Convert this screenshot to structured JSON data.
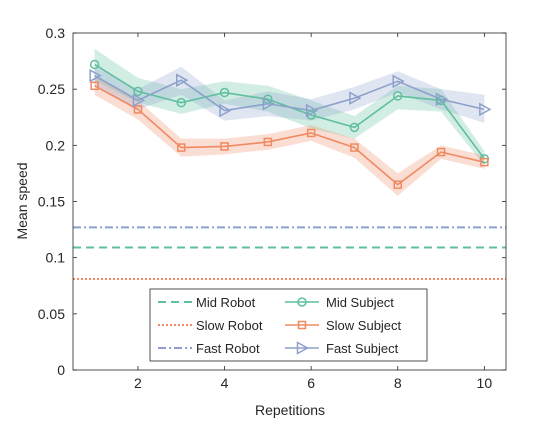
{
  "chart_data": {
    "type": "line",
    "xlabel": "Repetitions",
    "ylabel": "Mean speed",
    "xlim": [
      0.5,
      10.5
    ],
    "ylim": [
      0,
      0.3
    ],
    "xticks": [
      2,
      4,
      6,
      8,
      10
    ],
    "yticks": [
      0,
      0.05,
      0.1,
      0.15,
      0.2,
      0.25,
      0.3
    ],
    "ytick_labels": [
      "0",
      "0.05",
      "0.1",
      "0.15",
      "0.2",
      "0.25",
      "0.3"
    ],
    "grid": false,
    "legend_position": "bottom-center",
    "x": [
      1,
      2,
      3,
      4,
      5,
      6,
      7,
      8,
      9,
      10
    ],
    "series": [
      {
        "name": "Mid Subject",
        "color": "#5fbf9f",
        "marker": "circle",
        "values": [
          0.272,
          0.248,
          0.238,
          0.247,
          0.241,
          0.227,
          0.216,
          0.244,
          0.24,
          0.188
        ],
        "band_lower": [
          0.258,
          0.238,
          0.228,
          0.237,
          0.23,
          0.215,
          0.206,
          0.232,
          0.23,
          0.182
        ],
        "band_upper": [
          0.286,
          0.26,
          0.25,
          0.257,
          0.253,
          0.24,
          0.226,
          0.253,
          0.25,
          0.195
        ]
      },
      {
        "name": "Slow Subject",
        "color": "#ef8a62",
        "marker": "square",
        "values": [
          0.253,
          0.232,
          0.198,
          0.199,
          0.203,
          0.211,
          0.198,
          0.165,
          0.194,
          0.185
        ],
        "band_lower": [
          0.245,
          0.223,
          0.19,
          0.192,
          0.196,
          0.204,
          0.189,
          0.155,
          0.188,
          0.179
        ],
        "band_upper": [
          0.261,
          0.24,
          0.206,
          0.206,
          0.21,
          0.218,
          0.206,
          0.175,
          0.2,
          0.191
        ]
      },
      {
        "name": "Fast Subject",
        "color": "#8da0cb",
        "marker": "triangle-right",
        "values": [
          0.262,
          0.24,
          0.258,
          0.231,
          0.237,
          0.231,
          0.242,
          0.257,
          0.241,
          0.232
        ],
        "band_lower": [
          0.254,
          0.232,
          0.245,
          0.222,
          0.226,
          0.222,
          0.232,
          0.247,
          0.232,
          0.22
        ],
        "band_upper": [
          0.27,
          0.25,
          0.27,
          0.24,
          0.248,
          0.241,
          0.252,
          0.266,
          0.25,
          0.245
        ]
      }
    ],
    "reference_lines": [
      {
        "name": "Mid Robot",
        "value": 0.109,
        "color": "#5fbf9f",
        "style": "dashed"
      },
      {
        "name": "Slow Robot",
        "value": 0.081,
        "color": "#ef8a62",
        "style": "dotted"
      },
      {
        "name": "Fast Robot",
        "value": 0.127,
        "color": "#8da0cb",
        "style": "dashdot"
      }
    ],
    "legend": {
      "left_column": [
        "Mid Robot",
        "Slow Robot",
        "Fast Robot"
      ],
      "right_column": [
        "Mid Subject",
        "Slow Subject",
        "Fast Subject"
      ]
    }
  }
}
